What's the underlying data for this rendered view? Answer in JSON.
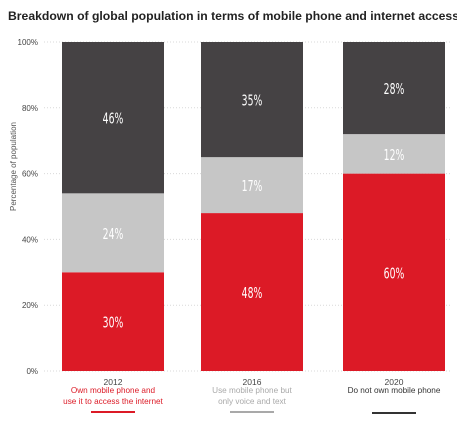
{
  "chart_data": {
    "type": "bar",
    "stacked": true,
    "title": "Breakdown of global population in terms of mobile phone and internet access",
    "ylabel": "Percentage of population",
    "xlabel": "",
    "ylim": [
      0,
      100
    ],
    "yticks": [
      "0%",
      "20%",
      "40%",
      "60%",
      "80%",
      "100%"
    ],
    "categories": [
      "2012",
      "2016",
      "2020"
    ],
    "series": [
      {
        "name": "Own mobile phone and use it to access the internet",
        "color": "#dc1a26",
        "values": [
          30,
          48,
          60
        ],
        "labels": [
          "30%",
          "48%",
          "60%"
        ]
      },
      {
        "name": "Use mobile phone but only voice and text",
        "color": "#c6c6c6",
        "values": [
          24,
          17,
          12
        ],
        "labels": [
          "24%",
          "17%",
          "12%"
        ]
      },
      {
        "name": "Do not own mobile phone",
        "color": "#454244",
        "values": [
          46,
          35,
          28
        ],
        "labels": [
          "46%",
          "35%",
          "28%"
        ]
      }
    ],
    "legend": [
      {
        "lines": [
          "Own mobile phone and",
          "use it to access the internet"
        ],
        "color": "#dc1a26"
      },
      {
        "lines": [
          "Use mobile phone but",
          "only voice and text"
        ],
        "color": "#a9a9a9"
      },
      {
        "lines": [
          "Do not own mobile phone"
        ],
        "color": "#333333"
      }
    ],
    "legend_placement": "bottom",
    "grid": true
  }
}
